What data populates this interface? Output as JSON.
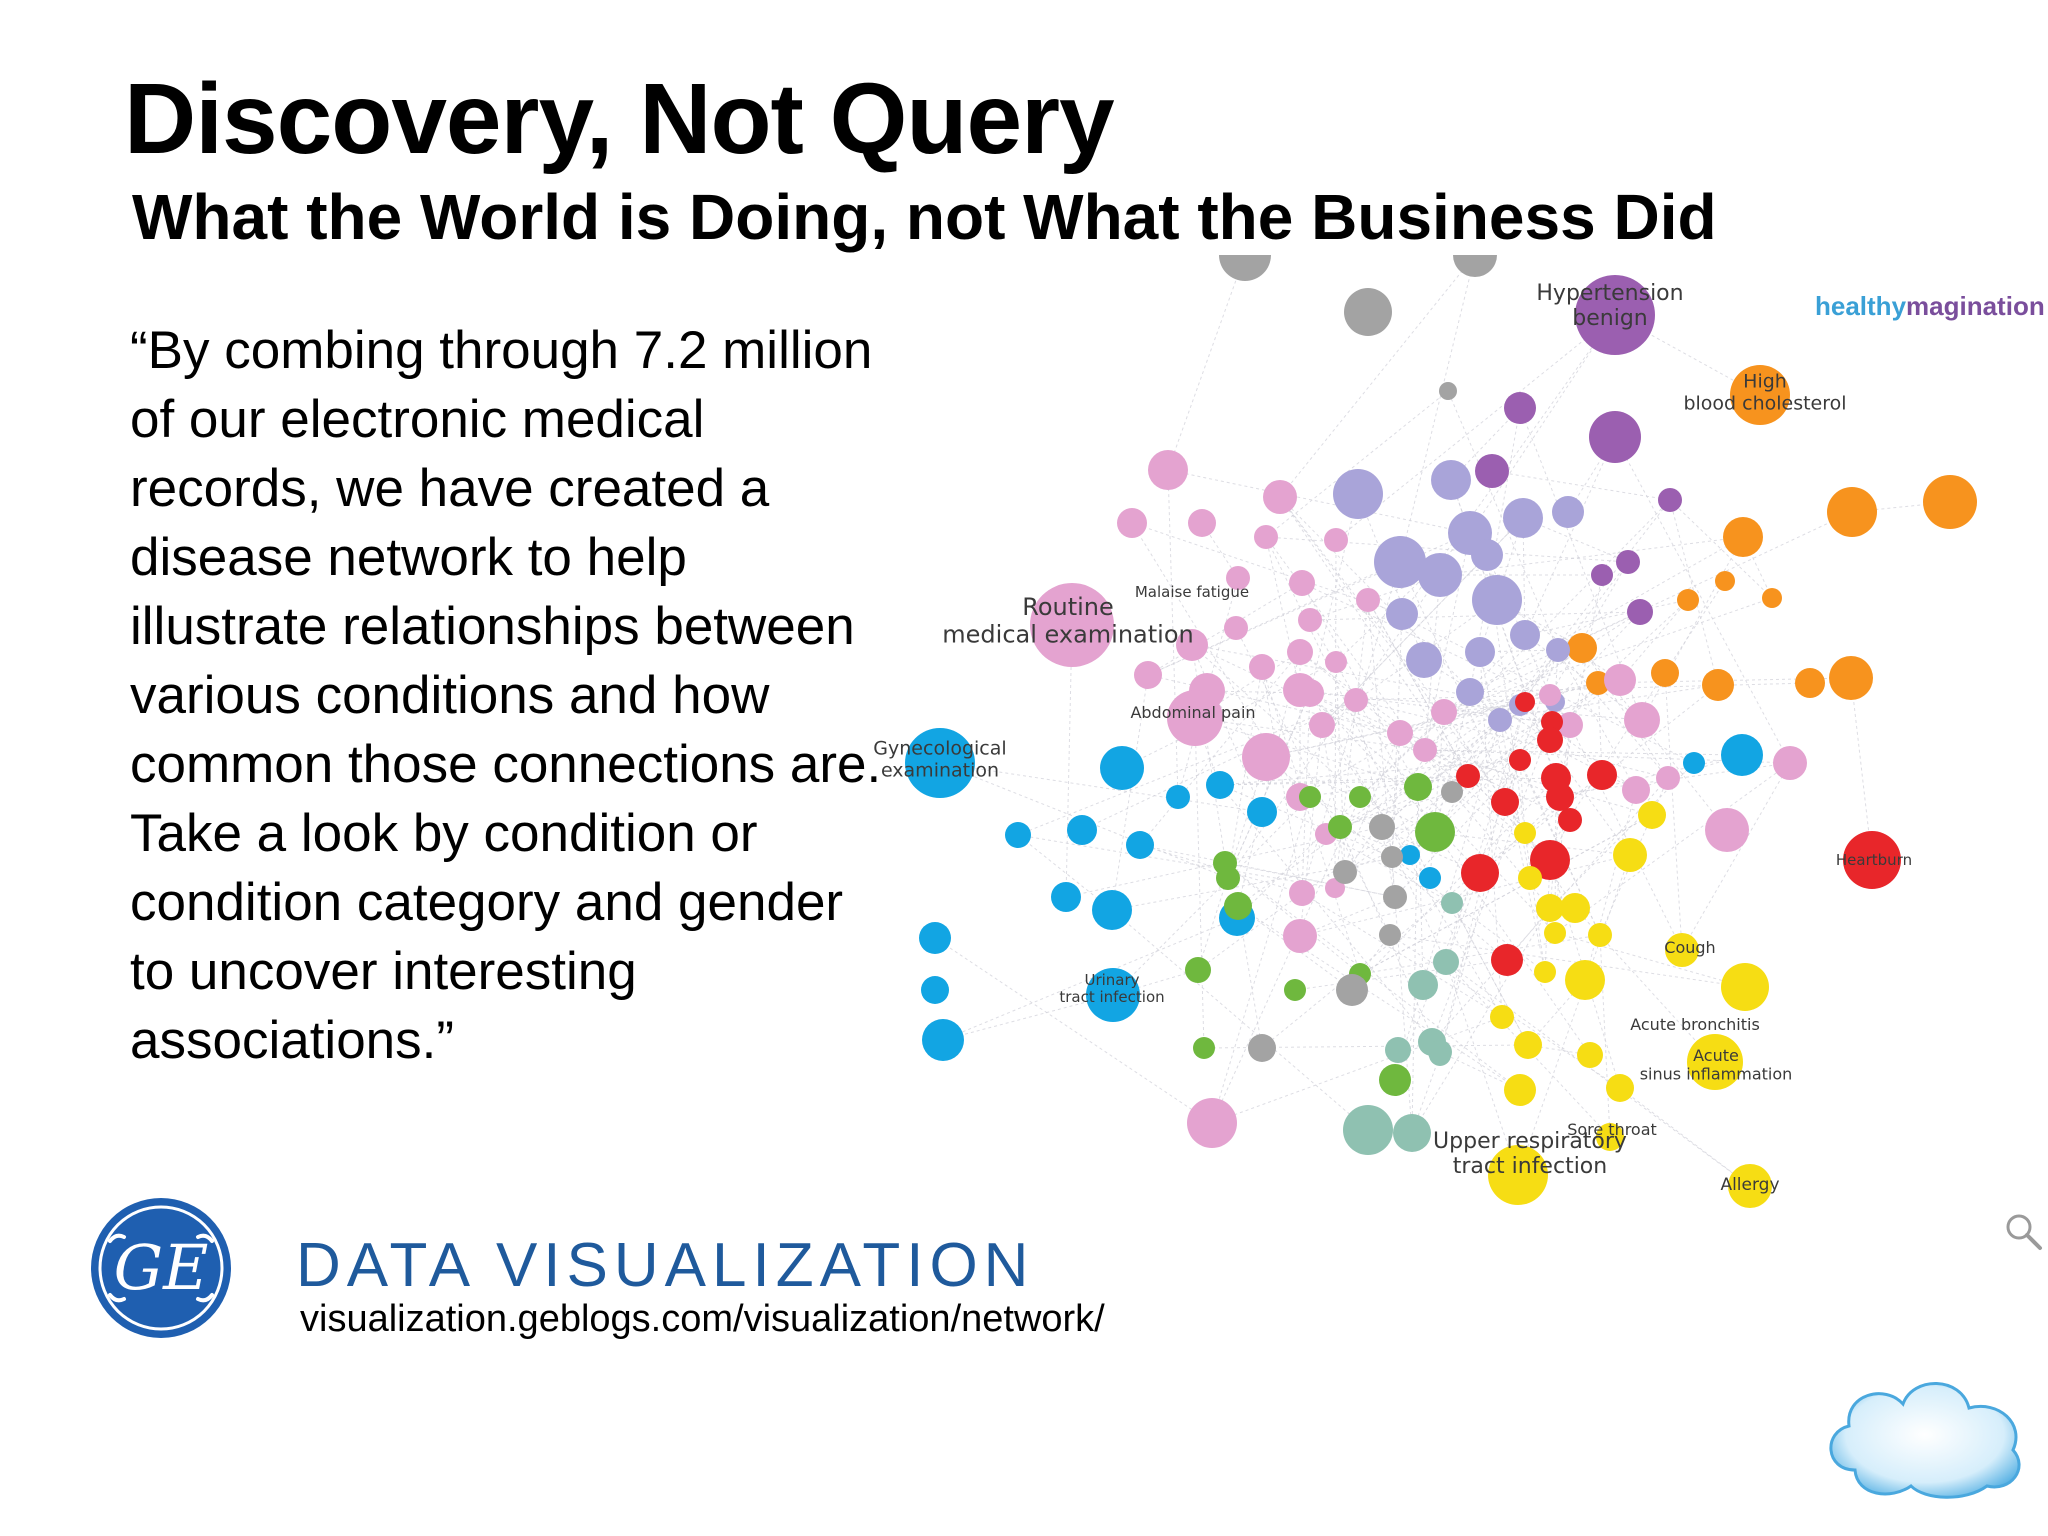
{
  "slide": {
    "title": "Discovery, Not Query",
    "subtitle": "What the World is Doing, not What the Business Did",
    "quote": "“By combing through 7.2 million of our electronic medical records, we have created a disease network to help illustrate relationships between various conditions and how common those connections are. Take a look by condition or condition category and gender to uncover interesting associations.”"
  },
  "network": {
    "brand_part1": "healthy",
    "brand_part2": "magination",
    "labels": [
      "Hypertension benign",
      "High blood cholesterol",
      "Routine medical examination",
      "Malaise fatigue",
      "Abdominal pain",
      "Gynecological examination",
      "Heartburn",
      "Cough",
      "Urinary tract infection",
      "Acute bronchitis",
      "Acute sinus inflammation",
      "Sore throat",
      "Upper respiratory tract infection",
      "Allergy"
    ],
    "colors": {
      "purple": "#9b5fb0",
      "lavender": "#a9a4d9",
      "pink": "#e4a3d0",
      "orange": "#f7931e",
      "red": "#e8262a",
      "yellow": "#f6dd14",
      "blue": "#12a5e3",
      "green": "#6fb83e",
      "teal": "#8fc1b1",
      "gray": "#a3a3a3"
    }
  },
  "branding": {
    "logo": "ge-monogram-logo",
    "logo_text": "GE",
    "title": "DATA VISUALIZATION",
    "url": "visualization.geblogs.com/visualization/network/"
  }
}
